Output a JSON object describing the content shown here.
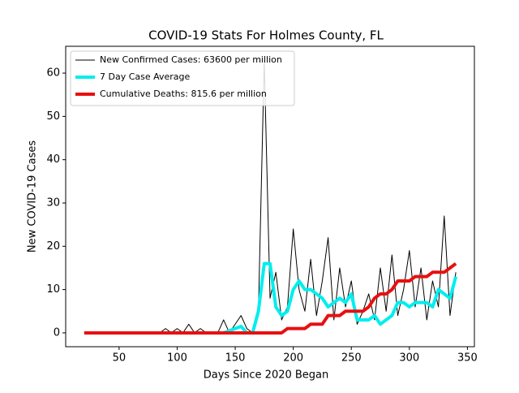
{
  "chart_data": {
    "type": "line",
    "title": "COVID-19 Stats For Holmes County, FL",
    "x_label": "Days Since 2020 Began",
    "y_label": "New COVID-19 Cases",
    "x": [
      20,
      25,
      30,
      35,
      40,
      45,
      50,
      55,
      60,
      65,
      70,
      75,
      80,
      85,
      90,
      95,
      100,
      105,
      110,
      115,
      120,
      125,
      130,
      135,
      140,
      145,
      150,
      155,
      160,
      165,
      170,
      175,
      180,
      185,
      190,
      195,
      200,
      205,
      210,
      215,
      220,
      225,
      230,
      235,
      240,
      245,
      250,
      255,
      260,
      265,
      270,
      275,
      280,
      285,
      290,
      295,
      300,
      305,
      310,
      315,
      320,
      325,
      330,
      335,
      340
    ],
    "series": [
      {
        "name": "New Confirmed Cases: 63600 per million",
        "color": "#000000",
        "width": 1,
        "values": [
          0,
          0,
          0,
          0,
          0,
          0,
          0,
          0,
          0,
          0,
          0,
          0,
          0,
          0,
          1,
          0,
          1,
          0,
          2,
          0,
          1,
          0,
          0,
          0,
          3,
          0,
          2,
          4,
          1,
          0,
          5,
          63,
          8,
          14,
          3,
          6,
          24,
          10,
          5,
          17,
          4,
          12,
          22,
          3,
          15,
          6,
          12,
          2,
          5,
          9,
          3,
          15,
          5,
          18,
          4,
          10,
          19,
          6,
          15,
          3,
          12,
          6,
          27,
          4,
          14
        ]
      },
      {
        "name": "7 Day Case Average",
        "color": "#00eeee",
        "width": 4,
        "values": [
          0,
          0,
          0,
          0,
          0,
          0,
          0,
          0,
          0,
          0,
          0,
          0,
          0,
          0,
          0,
          0,
          0,
          0,
          0,
          0,
          0,
          0,
          0,
          0,
          0,
          0.5,
          1,
          1.5,
          0,
          0,
          5,
          16,
          16,
          6,
          4,
          5,
          10,
          12,
          10,
          10,
          9,
          8,
          6,
          7,
          8,
          7,
          9,
          3,
          3,
          3,
          4,
          2,
          3,
          4,
          7,
          7,
          6,
          7,
          7,
          7,
          6,
          10,
          9,
          8,
          13
        ]
      },
      {
        "name": "Cumulative Deaths: 815.6 per million",
        "color": "#e81010",
        "width": 4,
        "values": [
          0,
          0,
          0,
          0,
          0,
          0,
          0,
          0,
          0,
          0,
          0,
          0,
          0,
          0,
          0,
          0,
          0,
          0,
          0,
          0,
          0,
          0,
          0,
          0,
          0,
          0,
          0,
          0,
          0,
          0,
          0,
          0,
          0,
          0,
          0,
          1,
          1,
          1,
          1,
          2,
          2,
          2,
          4,
          4,
          4,
          5,
          5,
          5,
          5,
          6,
          8,
          9,
          9,
          10,
          12,
          12,
          12,
          13,
          13,
          13,
          14,
          14,
          14,
          15,
          16
        ]
      }
    ],
    "xlim": [
      4,
      356
    ],
    "xticks": [
      50,
      100,
      150,
      200,
      250,
      300,
      350
    ],
    "ylim": [
      -3.2,
      66.2
    ],
    "yticks": [
      0,
      10,
      20,
      30,
      40,
      50,
      60
    ],
    "legend": "upper left"
  }
}
